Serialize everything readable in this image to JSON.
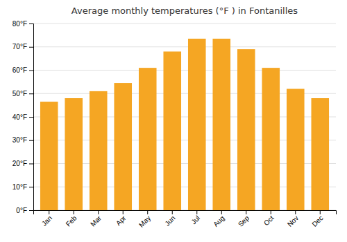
{
  "chart_data": {
    "type": "bar",
    "title": "Average monthly temperatures (°F ) in Fontanilles",
    "categories": [
      "Jan",
      "Feb",
      "Mar",
      "Apr",
      "May",
      "Jun",
      "Jul",
      "Aug",
      "Sep",
      "Oct",
      "Nov",
      "Dec"
    ],
    "values": [
      46.5,
      48.0,
      51.0,
      54.5,
      61.0,
      68.0,
      73.5,
      73.5,
      69.0,
      61.0,
      52.0,
      48.0
    ],
    "color": "#F5A623",
    "ylim": [
      0,
      80
    ],
    "yticks": [
      {
        "value": 0,
        "label": "0°F"
      },
      {
        "value": 10,
        "label": "10°F"
      },
      {
        "value": 20,
        "label": "20°F"
      },
      {
        "value": 30,
        "label": "30°F"
      },
      {
        "value": 40,
        "label": "40°F"
      },
      {
        "value": 50,
        "label": "50°F"
      },
      {
        "value": 60,
        "label": "60°F"
      },
      {
        "value": 70,
        "label": "70°F"
      },
      {
        "value": 80,
        "label": "80°F"
      }
    ],
    "grid": true
  }
}
